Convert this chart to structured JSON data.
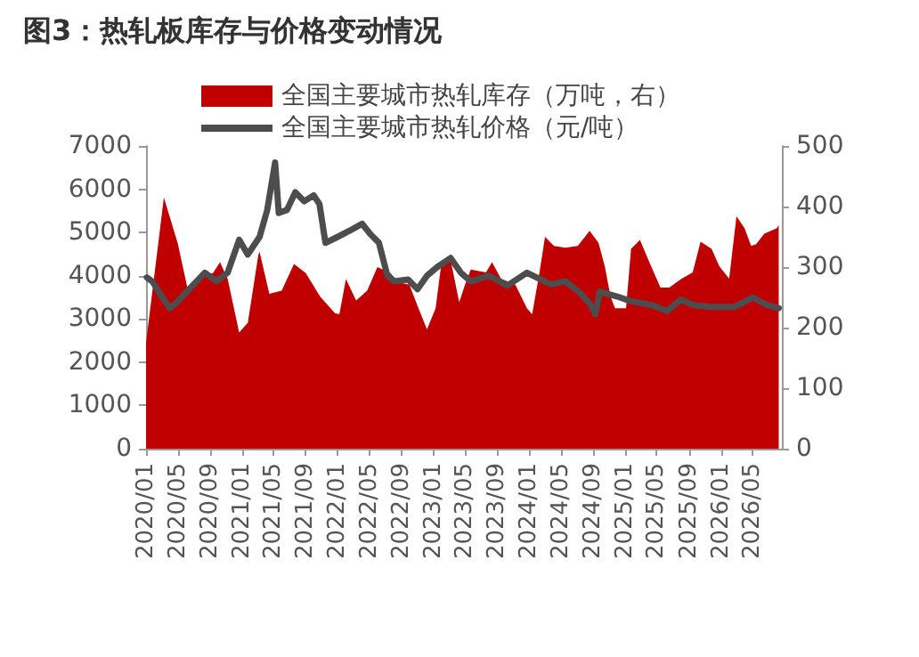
{
  "chart_data": {
    "type": "line",
    "title": "图3：热轧板库存与价格变动情况",
    "xlim": [
      "2020-01-01",
      "2026-08-21"
    ],
    "xticks": [
      {
        "value": "2020-01",
        "label": "2020/01"
      },
      {
        "value": "2020-05",
        "label": "2020/05"
      },
      {
        "value": "2020-09",
        "label": "2020/09"
      },
      {
        "value": "2021-01",
        "label": "2021/01"
      },
      {
        "value": "2021-05",
        "label": "2021/05"
      },
      {
        "value": "2021-09",
        "label": "2021/09"
      },
      {
        "value": "2022-01",
        "label": "2022/01"
      },
      {
        "value": "2022-05",
        "label": "2022/05"
      },
      {
        "value": "2022-09",
        "label": "2022/09"
      },
      {
        "value": "2023-01",
        "label": "2023/01"
      },
      {
        "value": "2023-05",
        "label": "2023/05"
      },
      {
        "value": "2023-09",
        "label": "2023/09"
      },
      {
        "value": "2024-01",
        "label": "2024/01"
      },
      {
        "value": "2024-05",
        "label": "2024/05"
      },
      {
        "value": "2024-09",
        "label": "2024/09"
      },
      {
        "value": "2025-01",
        "label": "2025/01"
      },
      {
        "value": "2025-05",
        "label": "2025/05"
      },
      {
        "value": "2025-09",
        "label": "2025/09"
      },
      {
        "value": "2026-01",
        "label": "2026/01"
      },
      {
        "value": "2026-05",
        "label": "2026/05"
      }
    ],
    "ylim": [
      0,
      7000
    ],
    "yticks": [
      0,
      1000,
      2000,
      3000,
      4000,
      5000,
      6000,
      7000
    ],
    "y2lim": [
      0,
      500
    ],
    "y2ticks": [
      0,
      100,
      200,
      300,
      400,
      500
    ],
    "grid": false,
    "legend": "top",
    "marker": "none",
    "line_style": "solid",
    "series": [
      {
        "name": "全国主要城市热轧库存（万吨，右）",
        "type": "area",
        "axis": "y2",
        "color": "#c00000",
        "x": [
          "2020-01-01",
          "2020-03-09",
          "2020-05-01",
          "2020-06-09",
          "2020-07-18",
          "2020-09-12",
          "2020-10-09",
          "2020-11-07",
          "2020-12-21",
          "2021-01-23",
          "2021-03-04",
          "2021-03-09",
          "2021-04-15",
          "2021-06-01",
          "2021-07-18",
          "2021-09-01",
          "2021-10-26",
          "2021-12-21",
          "2022-01-07",
          "2022-02-01",
          "2022-03-12",
          "2022-04-23",
          "2022-06-01",
          "2022-07-21",
          "2022-08-18",
          "2022-10-01",
          "2022-11-01",
          "2022-12-07",
          "2023-01-09",
          "2023-02-01",
          "2023-03-07",
          "2023-04-09",
          "2023-05-01",
          "2023-05-23",
          "2023-07-20",
          "2023-08-12",
          "2023-09-15",
          "2023-11-09",
          "2023-12-23",
          "2024-01-12",
          "2024-02-09",
          "2024-03-01",
          "2024-04-04",
          "2024-05-18",
          "2024-07-04",
          "2024-08-18",
          "2024-09-21",
          "2024-10-15",
          "2024-11-06",
          "2024-11-23",
          "2025-01-04",
          "2025-01-23",
          "2025-02-26",
          "2025-04-01",
          "2025-05-15",
          "2025-06-18",
          "2025-08-04",
          "2025-09-15",
          "2025-10-15",
          "2025-11-26",
          "2025-12-26",
          "2026-02-01",
          "2026-03-01",
          "2026-04-01",
          "2026-04-26",
          "2026-05-15",
          "2026-06-15",
          "2026-08-01",
          "2026-08-09"
        ],
        "values": [
          175,
          415,
          339,
          261,
          285,
          290,
          308,
          281,
          192,
          208,
          320,
          325,
          256,
          261,
          305,
          290,
          251,
          224,
          222,
          280,
          245,
          261,
          300,
          290,
          275,
          271,
          236,
          197,
          232,
          310,
          312,
          242,
          271,
          296,
          291,
          308,
          281,
          271,
          232,
          222,
          291,
          350,
          335,
          332,
          335,
          360,
          340,
          301,
          251,
          232,
          232,
          330,
          345,
          310,
          266,
          266,
          281,
          291,
          342,
          330,
          301,
          281,
          384,
          364,
          335,
          338,
          355,
          364,
          369
        ]
      },
      {
        "name": "全国主要城市热轧价格（元/吨）",
        "axis": "y",
        "color": "#4d4d4d",
        "x": [
          "2020-01-04",
          "2020-01-26",
          "2020-03-01",
          "2020-04-01",
          "2020-04-23",
          "2020-06-09",
          "2020-08-12",
          "2020-09-26",
          "2020-11-07",
          "2020-12-21",
          "2021-01-23",
          "2021-03-09",
          "2021-04-07",
          "2021-05-07",
          "2021-05-21",
          "2021-06-21",
          "2021-07-23",
          "2021-08-26",
          "2021-10-01",
          "2021-10-23",
          "2021-11-15",
          "2022-01-01",
          "2022-02-15",
          "2022-04-04",
          "2022-05-04",
          "2022-06-07",
          "2022-07-09",
          "2022-08-04",
          "2022-09-26",
          "2022-11-01",
          "2022-12-07",
          "2023-01-15",
          "2023-03-07",
          "2023-04-15",
          "2023-05-23",
          "2023-08-01",
          "2023-10-09",
          "2023-12-23",
          "2024-03-23",
          "2024-05-18",
          "2024-07-15",
          "2024-08-23",
          "2024-09-09",
          "2024-09-26",
          "2024-12-01",
          "2025-01-23",
          "2025-04-12",
          "2025-06-09",
          "2025-08-01",
          "2025-09-18",
          "2025-11-23",
          "2026-02-23",
          "2026-05-01",
          "2026-06-26",
          "2026-08-09"
        ],
        "values": [
          3960,
          3860,
          3520,
          3250,
          3360,
          3660,
          4070,
          3870,
          4070,
          4830,
          4490,
          4900,
          5520,
          6620,
          5450,
          5520,
          5930,
          5720,
          5860,
          5660,
          4760,
          4900,
          5040,
          5200,
          4970,
          4760,
          4000,
          3870,
          3910,
          3690,
          4000,
          4200,
          4410,
          4070,
          3870,
          4000,
          3770,
          4070,
          3800,
          3870,
          3590,
          3320,
          3110,
          3630,
          3520,
          3410,
          3320,
          3180,
          3450,
          3320,
          3280,
          3280,
          3500,
          3320,
          3250
        ]
      }
    ]
  }
}
